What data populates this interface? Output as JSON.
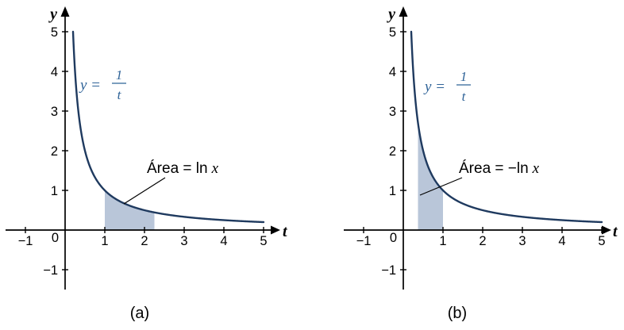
{
  "colors": {
    "curve": "#1f3a5f",
    "shade": "#b9c6d9",
    "function_label": "#2f6398",
    "axis": "#000000",
    "text": "#000000"
  },
  "chart_data": [
    {
      "type": "area",
      "function": "y = 1/t",
      "curve": {
        "expression": "1/t",
        "t_start": 0.2,
        "t_end": 5
      },
      "xlabel": "t",
      "ylabel": "y",
      "xlim": [
        -1.5,
        5.6
      ],
      "ylim": [
        -1.5,
        5.6
      ],
      "x_ticks": [
        -1,
        1,
        2,
        3,
        4,
        5
      ],
      "y_ticks": [
        -1,
        1,
        2,
        3,
        4,
        5
      ],
      "origin_label": "0",
      "grid": false,
      "shaded_region": {
        "from": 1,
        "to": 2.25,
        "description": "area under y = 1/t between t = 1 and t = x"
      },
      "function_label": {
        "lhs": "y =",
        "numerator": "1",
        "denominator": "t"
      },
      "annotation": {
        "prefix": "Área = ln",
        "variable": "x",
        "text": "Área = ln x"
      },
      "caption": "(a)"
    },
    {
      "type": "area",
      "function": "y = 1/t",
      "curve": {
        "expression": "1/t",
        "t_start": 0.2,
        "t_end": 5
      },
      "xlabel": "t",
      "ylabel": "y",
      "xlim": [
        -1.5,
        5.6
      ],
      "ylim": [
        -1.5,
        5.6
      ],
      "x_ticks": [
        -1,
        1,
        2,
        3,
        4,
        5
      ],
      "y_ticks": [
        -1,
        1,
        2,
        3,
        4,
        5
      ],
      "origin_label": "0",
      "grid": false,
      "shaded_region": {
        "from": 0.37,
        "to": 1,
        "description": "area under y = 1/t between t = x and t = 1"
      },
      "function_label": {
        "lhs": "y =",
        "numerator": "1",
        "denominator": "t"
      },
      "annotation": {
        "prefix": "Área = −ln",
        "variable": "x",
        "text": "Área = −ln x"
      },
      "caption": "(b)"
    }
  ]
}
